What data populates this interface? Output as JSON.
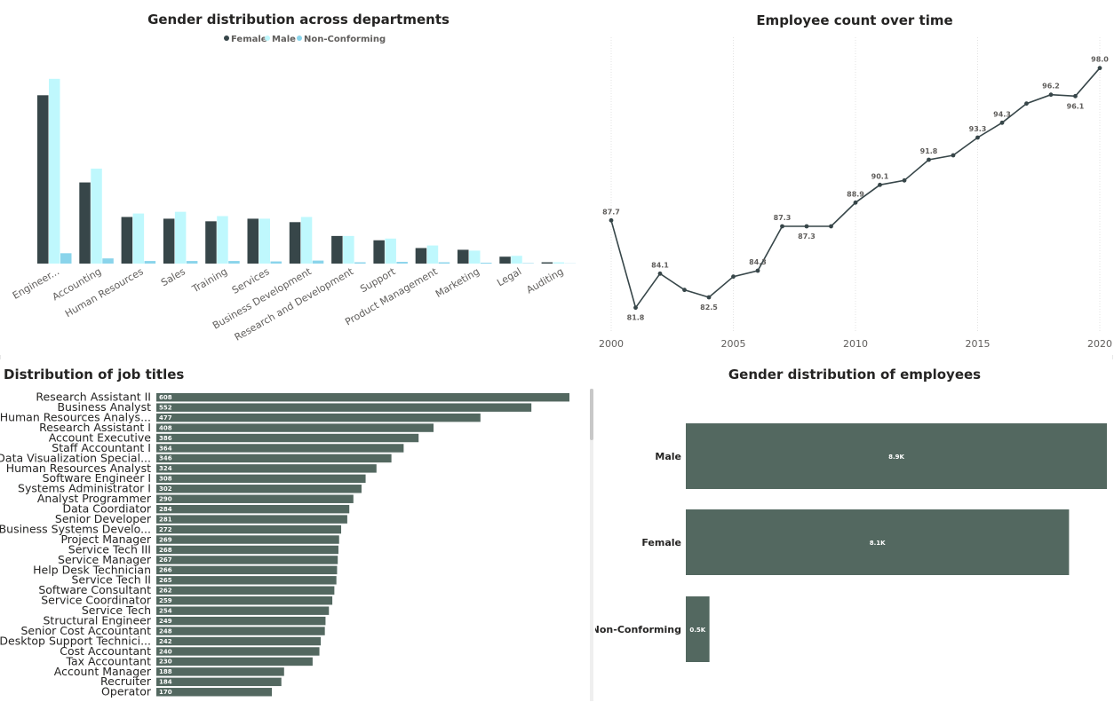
{
  "colors": {
    "female": "#374649",
    "male": "#bff8fd",
    "nonconforming": "#8ad4eb",
    "bar": "#536860",
    "line": "#374649"
  },
  "chart_data": [
    {
      "id": "gender_by_dept",
      "type": "bar",
      "title": "Gender distribution across departments",
      "legend": [
        "Female",
        "Male",
        "Non-Conforming"
      ],
      "legend_position": "top-center",
      "categories": [
        "Engineer...",
        "Accounting",
        "Human Resources",
        "Sales",
        "Training",
        "Services",
        "Business Development",
        "Research and Development",
        "Support",
        "Product Management",
        "Marketing",
        "Legal",
        "Auditing"
      ],
      "series": [
        {
          "name": "Female",
          "values": [
            1950,
            940,
            540,
            520,
            490,
            520,
            480,
            320,
            270,
            180,
            160,
            80,
            15
          ]
        },
        {
          "name": "Male",
          "values": [
            2140,
            1100,
            580,
            600,
            550,
            520,
            540,
            320,
            290,
            210,
            150,
            90,
            15
          ]
        },
        {
          "name": "Non-Conforming",
          "values": [
            120,
            60,
            30,
            30,
            30,
            25,
            35,
            15,
            20,
            15,
            10,
            5,
            2
          ]
        }
      ],
      "ylim": [
        0,
        2200
      ],
      "grid": false
    },
    {
      "id": "employee_over_time",
      "type": "line",
      "title": "Employee count over time",
      "x": [
        2000,
        2001,
        2002,
        2003,
        2004,
        2005,
        2006,
        2007,
        2008,
        2009,
        2010,
        2011,
        2012,
        2013,
        2014,
        2015,
        2016,
        2017,
        2018,
        2019,
        2020
      ],
      "values": [
        87.7,
        81.8,
        84.1,
        83.0,
        82.5,
        83.9,
        84.3,
        87.3,
        87.3,
        87.3,
        88.9,
        90.1,
        90.4,
        91.8,
        92.1,
        93.3,
        94.3,
        95.6,
        96.2,
        96.1,
        98.0
      ],
      "labels": [
        "87.7",
        "81.8",
        "84.1",
        "",
        "82.5",
        "",
        "84.3",
        "87.3",
        "87.3",
        "",
        "88.9",
        "90.1",
        "",
        "91.8",
        "",
        "93.3",
        "94.3",
        "",
        "96.2",
        "96.1",
        "98.0"
      ],
      "xticks": [
        "2000",
        "2005",
        "2010",
        "2015",
        "2020"
      ],
      "xlim": [
        2000,
        2020
      ],
      "ylim": [
        81.0,
        99.0
      ],
      "grid": "vertical"
    },
    {
      "id": "job_titles",
      "type": "bar",
      "orientation": "horizontal",
      "title": "Distribution of job titles",
      "categories": [
        "Research Assistant II",
        "Business Analyst",
        "Human Resources Analys...",
        "Research Assistant I",
        "Account Executive",
        "Staff Accountant I",
        "Data Visualization Special...",
        "Human Resources Analyst",
        "Software Engineer I",
        "Systems Administrator I",
        "Analyst Programmer",
        "Data Coordiator",
        "Senior Developer",
        "Business Systems Develo...",
        "Project Manager",
        "Service Tech III",
        "Service Manager",
        "Help Desk Technician",
        "Service Tech II",
        "Software Consultant",
        "Service Coordinator",
        "Service Tech",
        "Structural Engineer",
        "Senior Cost Accountant",
        "Desktop Support Technici...",
        "Cost Accountant",
        "Tax Accountant",
        "Account Manager",
        "Recruiter",
        "Operator"
      ],
      "values": [
        608,
        552,
        477,
        408,
        386,
        364,
        346,
        324,
        308,
        302,
        290,
        284,
        281,
        272,
        269,
        268,
        267,
        266,
        265,
        262,
        259,
        254,
        249,
        248,
        242,
        240,
        230,
        188,
        184,
        170
      ],
      "xlim": [
        0,
        608
      ]
    },
    {
      "id": "gender_employees",
      "type": "bar",
      "orientation": "horizontal",
      "title": "Gender distribution of employees",
      "categories": [
        "Male",
        "Female",
        "Non-Conforming"
      ],
      "values": [
        8900,
        8100,
        500
      ],
      "labels": [
        "8.9K",
        "8.1K",
        "0.5K"
      ],
      "xlim": [
        0,
        8900
      ]
    }
  ]
}
